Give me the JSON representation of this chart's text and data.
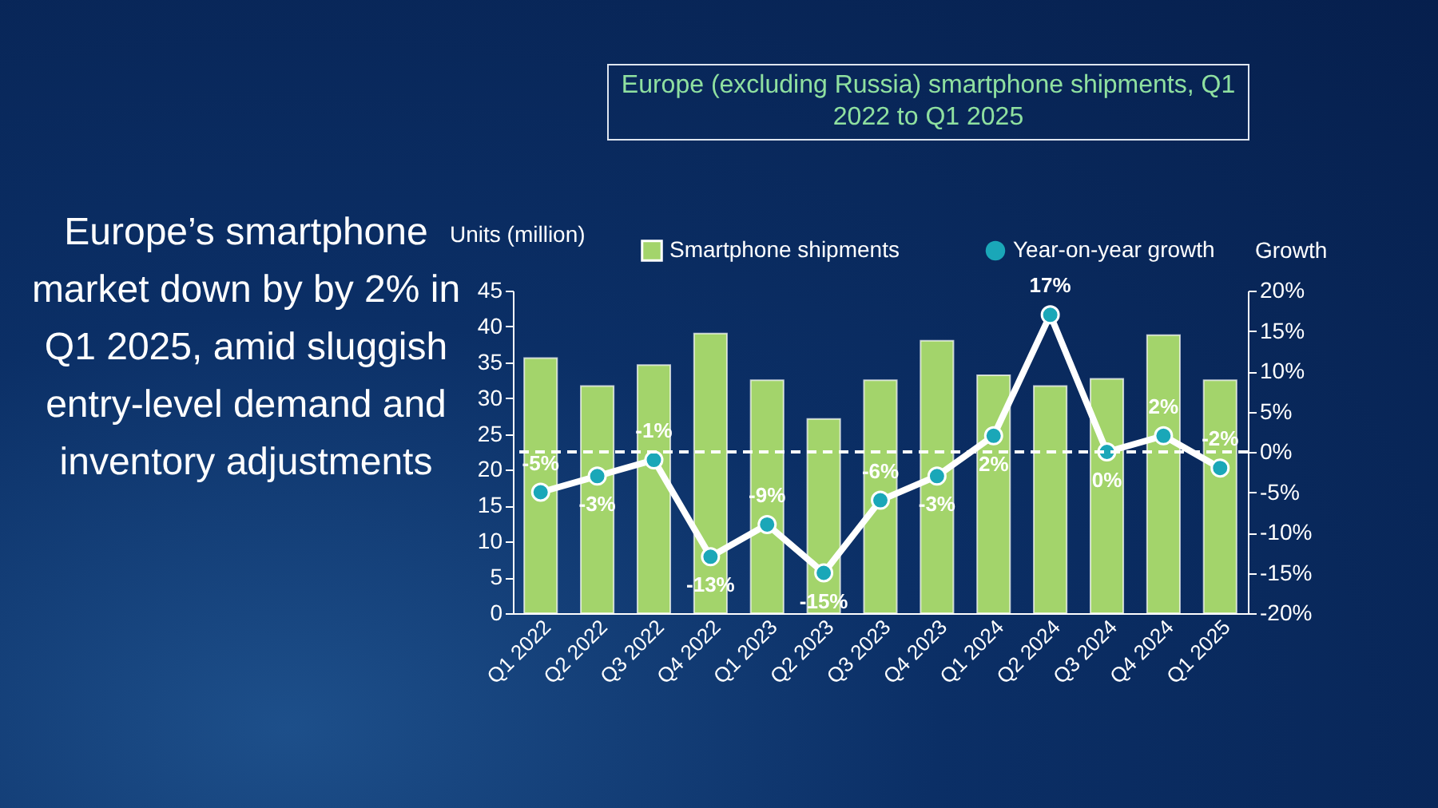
{
  "chart_data": {
    "type": "bar",
    "title": "Europe (excluding Russia) smartphone shipments, Q1 2022 to Q1 2025",
    "annotations": [
      "Europe’s smartphone market down by by 2% in Q1 2025, amid sluggish entry-level demand and inventory adjustments"
    ],
    "ylabel": "Units (million)",
    "y2label": "Growth",
    "categories": [
      "Q1 2022",
      "Q2 2022",
      "Q3 2022",
      "Q4 2022",
      "Q1 2023",
      "Q2 2023",
      "Q3 2023",
      "Q4 2023",
      "Q1 2024",
      "Q2 2024",
      "Q3 2024",
      "Q4 2024",
      "Q1 2025"
    ],
    "series": [
      {
        "name": "Smartphone shipments",
        "color": "#a3d46b",
        "values": [
          35.6,
          31.7,
          34.6,
          39.0,
          32.5,
          27.1,
          32.5,
          38.0,
          33.2,
          31.7,
          32.7,
          38.8,
          32.5
        ]
      },
      {
        "name": "Year-on-year growth",
        "type": "line",
        "axis": "y2",
        "color": "#ffffff",
        "marker": "circle",
        "values": [
          -5,
          -3,
          -1,
          -13,
          -9,
          -15,
          -6,
          -3,
          2,
          17,
          0,
          2,
          -2
        ],
        "value_labels": [
          "-5%",
          "-3%",
          "-1%",
          "-13%",
          "-9%",
          "-15%",
          "-6%",
          "-3%",
          "2%",
          "17%",
          "0%",
          "2%",
          "-2%"
        ]
      }
    ],
    "ylim": [
      0,
      45
    ],
    "yticks": [
      0,
      5,
      10,
      15,
      20,
      25,
      30,
      35,
      40,
      45
    ],
    "y2lim": [
      -20,
      20
    ],
    "y2ticks": [
      {
        "value": -20,
        "label": "-20%"
      },
      {
        "value": -15,
        "label": "-15%"
      },
      {
        "value": -10,
        "label": "-10%"
      },
      {
        "value": -5,
        "label": "-5%"
      },
      {
        "value": 0,
        "label": "0%"
      },
      {
        "value": 5,
        "label": "5%"
      },
      {
        "value": 10,
        "label": "10%"
      },
      {
        "value": 15,
        "label": "15%"
      },
      {
        "value": 20,
        "label": "20%"
      }
    ],
    "ref_lines": [
      {
        "axis": "y2",
        "value": 0,
        "color": "#ffffff",
        "line_style": "dashed"
      }
    ],
    "legend": "top",
    "grid": false
  }
}
